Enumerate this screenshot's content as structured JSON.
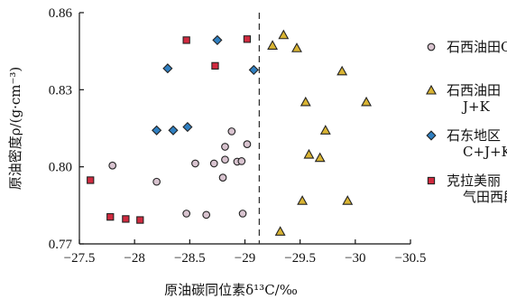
{
  "chart_data": {
    "type": "scatter",
    "xlabel": "原油碳同位素δ¹³C/‰",
    "ylabel": "原油密度ρ/(g·cm⁻³)",
    "xlim": [
      -27.5,
      -30.5
    ],
    "ylim": [
      0.77,
      0.86
    ],
    "x_ticks": [
      -27.5,
      -28,
      -28.5,
      -29,
      -29.5,
      -30,
      -30.5
    ],
    "x_tick_labels": [
      "−27.5",
      "−28",
      "−28.5",
      "−29",
      "−29.5",
      "−30",
      "−30.5"
    ],
    "y_ticks": [
      0.77,
      0.8,
      0.83,
      0.86
    ],
    "y_tick_labels": [
      "0.77",
      "0.80",
      "0.83",
      "0.86"
    ],
    "reference_line": {
      "x": -29.13,
      "style": "dashed"
    },
    "grid": false,
    "legend_position": "right",
    "series": [
      {
        "name": "石西油田C",
        "marker": "circle",
        "color": "#d8c3cf",
        "points": [
          [
            -27.8,
            0.8005
          ],
          [
            -28.2,
            0.7942
          ],
          [
            -28.55,
            0.8013
          ],
          [
            -28.72,
            0.8013
          ],
          [
            -28.82,
            0.8078
          ],
          [
            -28.88,
            0.8138
          ],
          [
            -28.82,
            0.8028
          ],
          [
            -28.93,
            0.802
          ],
          [
            -28.97,
            0.8022
          ],
          [
            -29.02,
            0.8088
          ],
          [
            -28.8,
            0.7958
          ],
          [
            -28.47,
            0.7818
          ],
          [
            -28.65,
            0.7813
          ],
          [
            -28.98,
            0.7818
          ]
        ]
      },
      {
        "name_lines": [
          "石西油田",
          "J+K"
        ],
        "marker": "triangle",
        "color": "#d9b433",
        "points": [
          [
            -29.35,
            0.8513
          ],
          [
            -29.25,
            0.8472
          ],
          [
            -29.47,
            0.8462
          ],
          [
            -29.88,
            0.8372
          ],
          [
            -29.55,
            0.8252
          ],
          [
            -30.1,
            0.8252
          ],
          [
            -29.73,
            0.8142
          ],
          [
            -29.58,
            0.8048
          ],
          [
            -29.68,
            0.8035
          ],
          [
            -29.52,
            0.7868
          ],
          [
            -29.93,
            0.7868
          ],
          [
            -29.32,
            0.7748
          ]
        ]
      },
      {
        "name_lines": [
          "石东地区",
          "C+J+K"
        ],
        "marker": "diamond",
        "color": "#2f7fc1",
        "points": [
          [
            -28.75,
            0.8493
          ],
          [
            -28.3,
            0.8383
          ],
          [
            -29.08,
            0.8377
          ],
          [
            -28.2,
            0.8142
          ],
          [
            -28.35,
            0.8142
          ],
          [
            -28.48,
            0.8155
          ]
        ]
      },
      {
        "name_lines": [
          "克拉美丽",
          "气田西段"
        ],
        "marker": "square",
        "color": "#d12a3f",
        "points": [
          [
            -28.47,
            0.8493
          ],
          [
            -29.02,
            0.8497
          ],
          [
            -28.73,
            0.8393
          ],
          [
            -27.6,
            0.7948
          ],
          [
            -27.78,
            0.7805
          ],
          [
            -27.92,
            0.7797
          ],
          [
            -28.05,
            0.7793
          ]
        ]
      }
    ]
  }
}
